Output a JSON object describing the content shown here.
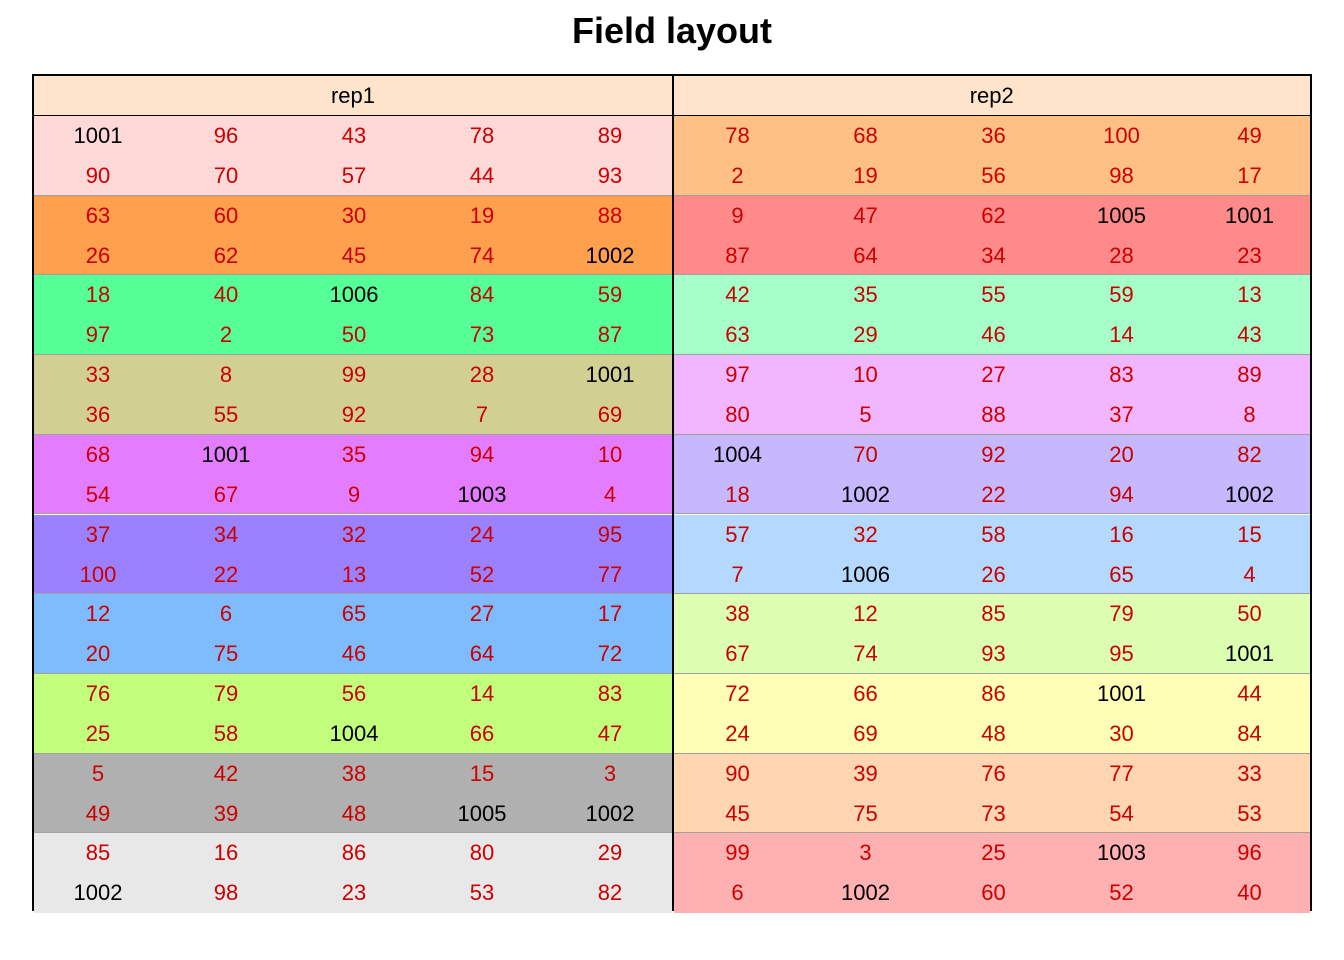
{
  "title": "Field layout",
  "colors": {
    "entry_text": "#cc0000",
    "check_text": "#000000",
    "header_bg": "#fde4ca"
  },
  "chart_data": {
    "type": "table",
    "title": "Field layout",
    "check_entries": [
      1001,
      1002,
      1003,
      1004,
      1005,
      1006
    ],
    "reps": [
      {
        "name": "rep1",
        "blocks": [
          {
            "color": "#ffd8d8",
            "rows": [
              [
                1001,
                96,
                43,
                78,
                89
              ],
              [
                90,
                70,
                57,
                44,
                93
              ]
            ]
          },
          {
            "color": "#ffa04f",
            "rows": [
              [
                63,
                60,
                30,
                19,
                88
              ],
              [
                26,
                62,
                45,
                74,
                1002
              ]
            ]
          },
          {
            "color": "#57ff97",
            "rows": [
              [
                18,
                40,
                1006,
                84,
                59
              ],
              [
                97,
                2,
                50,
                73,
                87
              ]
            ]
          },
          {
            "color": "#d2cf92",
            "rows": [
              [
                33,
                8,
                99,
                28,
                1001
              ],
              [
                36,
                55,
                92,
                7,
                69
              ]
            ]
          },
          {
            "color": "#e47cff",
            "rows": [
              [
                68,
                1001,
                35,
                94,
                10
              ],
              [
                54,
                67,
                9,
                1003,
                4
              ]
            ]
          },
          {
            "color": "#9b80ff",
            "rows": [
              [
                37,
                34,
                32,
                24,
                95
              ],
              [
                100,
                22,
                13,
                52,
                77
              ]
            ]
          },
          {
            "color": "#7fbcff",
            "rows": [
              [
                12,
                6,
                65,
                27,
                17
              ],
              [
                20,
                75,
                46,
                64,
                72
              ]
            ]
          },
          {
            "color": "#c1ff7c",
            "rows": [
              [
                76,
                79,
                56,
                14,
                83
              ],
              [
                25,
                58,
                1004,
                66,
                47
              ]
            ]
          },
          {
            "color": "#b0b0b0",
            "rows": [
              [
                5,
                42,
                38,
                15,
                3
              ],
              [
                49,
                39,
                48,
                1005,
                1002
              ]
            ]
          },
          {
            "color": "#e8e8e8",
            "rows": [
              [
                85,
                16,
                86,
                80,
                29
              ],
              [
                1002,
                98,
                23,
                53,
                82
              ]
            ]
          }
        ]
      },
      {
        "name": "rep2",
        "blocks": [
          {
            "color": "#ffc086",
            "rows": [
              [
                78,
                68,
                36,
                100,
                49
              ],
              [
                2,
                19,
                56,
                98,
                17
              ]
            ]
          },
          {
            "color": "#ff8a8a",
            "rows": [
              [
                9,
                47,
                62,
                1005,
                1001
              ],
              [
                87,
                64,
                34,
                28,
                23
              ]
            ]
          },
          {
            "color": "#a6ffc8",
            "rows": [
              [
                42,
                35,
                55,
                59,
                13
              ],
              [
                63,
                29,
                46,
                14,
                43
              ]
            ]
          },
          {
            "color": "#f1b6ff",
            "rows": [
              [
                97,
                10,
                27,
                83,
                89
              ],
              [
                80,
                5,
                88,
                37,
                8
              ]
            ]
          },
          {
            "color": "#c6b8ff",
            "rows": [
              [
                1004,
                70,
                92,
                20,
                82
              ],
              [
                18,
                1002,
                22,
                94,
                1002
              ]
            ]
          },
          {
            "color": "#b5d8ff",
            "rows": [
              [
                57,
                32,
                58,
                16,
                15
              ],
              [
                7,
                1006,
                26,
                65,
                4
              ]
            ]
          },
          {
            "color": "#dcffb2",
            "rows": [
              [
                38,
                12,
                85,
                79,
                50
              ],
              [
                67,
                74,
                93,
                95,
                1001
              ]
            ]
          },
          {
            "color": "#ffffb8",
            "rows": [
              [
                72,
                66,
                86,
                1001,
                44
              ],
              [
                24,
                69,
                48,
                30,
                84
              ]
            ]
          },
          {
            "color": "#ffd5b2",
            "rows": [
              [
                90,
                39,
                76,
                77,
                33
              ],
              [
                45,
                75,
                73,
                54,
                53
              ]
            ]
          },
          {
            "color": "#ffb1b1",
            "rows": [
              [
                99,
                3,
                25,
                1003,
                96
              ],
              [
                6,
                1002,
                60,
                52,
                40
              ]
            ]
          }
        ]
      }
    ]
  }
}
